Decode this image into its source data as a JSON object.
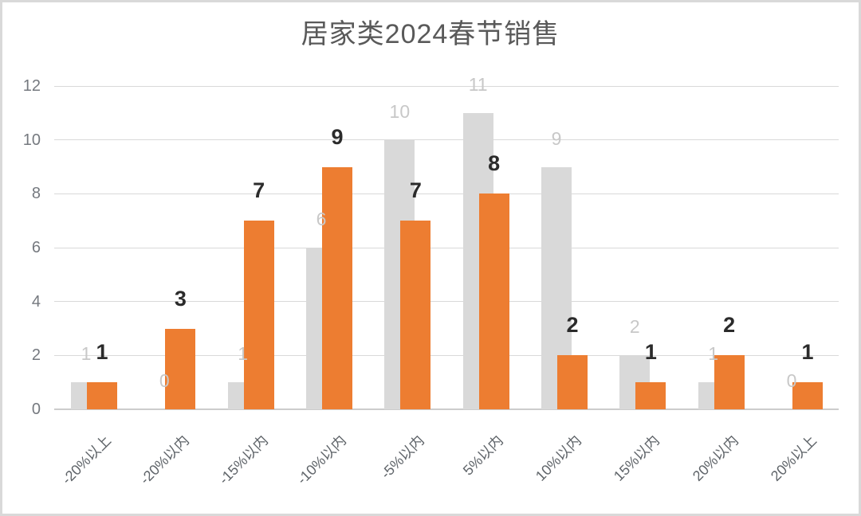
{
  "frame": {
    "background": "#ffffff",
    "border_color": "#d9d9d9"
  },
  "chart_data": {
    "type": "bar",
    "title": "居家类2024春节销售",
    "categories": [
      "-20%以上",
      "-20%以内",
      "-15%以内",
      "-10%以内",
      "-5%以内",
      "5%以内",
      "10%以内",
      "15%以内",
      "20%以内",
      "20%以上"
    ],
    "series": [
      {
        "name": "series-1",
        "color": "#d9d9d9",
        "label_color": "#c8c8c8",
        "values": [
          1,
          0,
          1,
          6,
          10,
          11,
          9,
          2,
          1,
          0
        ]
      },
      {
        "name": "series-2",
        "color": "#ed7d31",
        "label_color": "#2b2b2b",
        "values": [
          1,
          3,
          7,
          9,
          7,
          8,
          2,
          1,
          2,
          1
        ]
      }
    ],
    "y_ticks": [
      0,
      2,
      4,
      6,
      8,
      10,
      12
    ],
    "ylim": [
      0,
      12
    ],
    "xlabel": "",
    "ylabel": "",
    "grid": true,
    "legend_position": "none",
    "data_labels": true,
    "title_color": "#595959",
    "axis_label_color": "#5f6469",
    "gridline_color": "#d9d9d9"
  }
}
